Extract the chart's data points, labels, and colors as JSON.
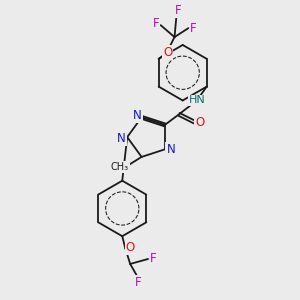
{
  "background_color": "#ebebeb",
  "bond_color": "#1a1a1a",
  "atom_colors": {
    "N": "#1414e6",
    "O": "#e61414",
    "F": "#cc00cc",
    "H": "#007070",
    "C": "#1a1a1a"
  },
  "lw": 1.3,
  "fs": 8.5
}
